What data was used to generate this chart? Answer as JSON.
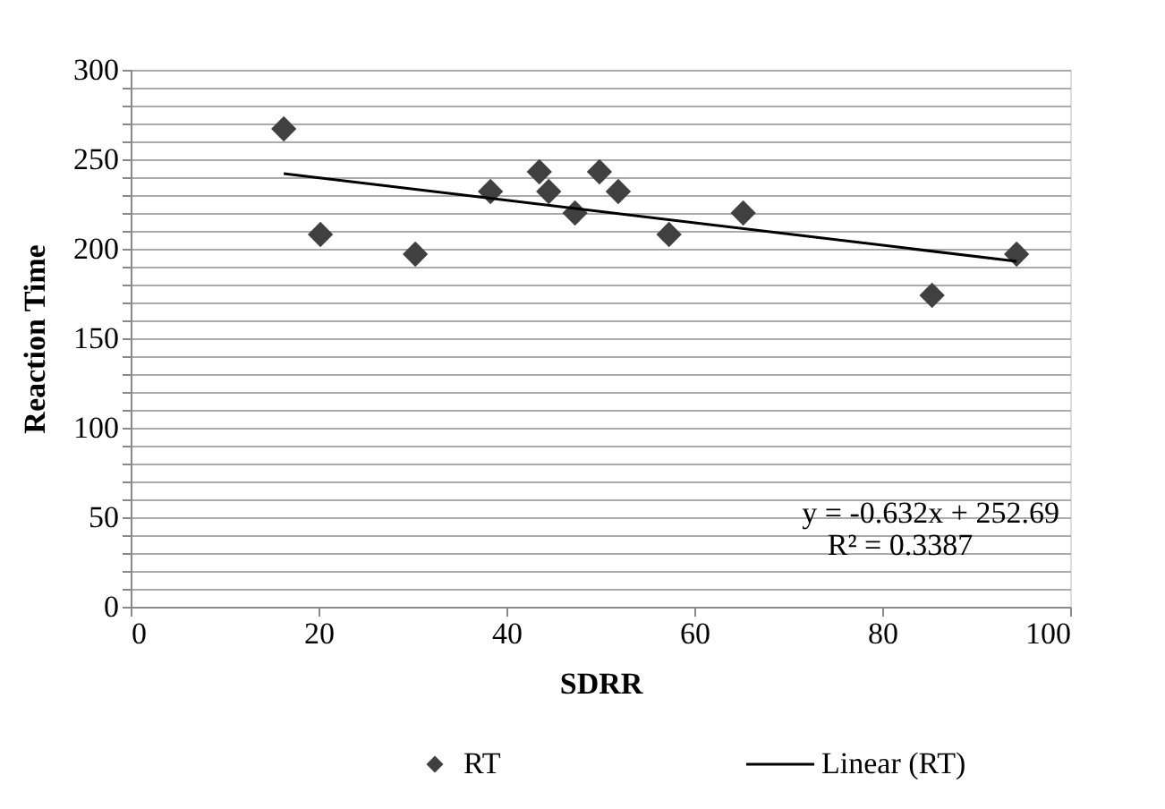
{
  "chart_data": {
    "type": "scatter",
    "xlabel": "SDRR",
    "ylabel": "Reaction Time",
    "xlim": [
      0,
      100
    ],
    "xticks": [
      0,
      20,
      40,
      60,
      80,
      100
    ],
    "ylim": [
      0,
      300
    ],
    "yticks": [
      0,
      {
        "value": 10,
        "label": null
      },
      {
        "value": 20,
        "label": null
      },
      {
        "value": 30,
        "label": null
      },
      {
        "value": 40,
        "label": null
      },
      50,
      {
        "value": 60,
        "label": null
      },
      {
        "value": 70,
        "label": null
      },
      {
        "value": 80,
        "label": null
      },
      {
        "value": 90,
        "label": null
      },
      100,
      {
        "value": 110,
        "label": null
      },
      {
        "value": 120,
        "label": null
      },
      {
        "value": 130,
        "label": null
      },
      {
        "value": 140,
        "label": null
      },
      150,
      {
        "value": 160,
        "label": null
      },
      {
        "value": 170,
        "label": null
      },
      {
        "value": 180,
        "label": null
      },
      {
        "value": 190,
        "label": null
      },
      200,
      {
        "value": 210,
        "label": null
      },
      {
        "value": 220,
        "label": null
      },
      {
        "value": 230,
        "label": null
      },
      {
        "value": 240,
        "label": null
      },
      250,
      {
        "value": 260,
        "label": null
      },
      {
        "value": 270,
        "label": null
      },
      {
        "value": 280,
        "label": null
      },
      {
        "value": 290,
        "label": null
      },
      300
    ],
    "grid": "y",
    "legend": "bottom",
    "annotations": [
      "y = -0.632x + 252.69",
      "R² = 0.3387"
    ],
    "series": [
      {
        "name": "RT",
        "marker": "diamond",
        "color": "#404040",
        "x": [
          16.3,
          20.2,
          30.3,
          38.3,
          43.5,
          44.5,
          47.3,
          49.9,
          51.9,
          57.3,
          65.2,
          85.3,
          94.3
        ],
        "values": [
          267,
          208,
          197,
          232,
          243,
          232,
          220,
          243,
          232,
          208,
          220,
          174,
          197
        ]
      },
      {
        "name": "Linear (RT)",
        "type": "line",
        "line_style": "solid",
        "color": "#000000",
        "x": [
          16.3,
          94.3
        ],
        "values": [
          242,
          193
        ]
      }
    ]
  }
}
